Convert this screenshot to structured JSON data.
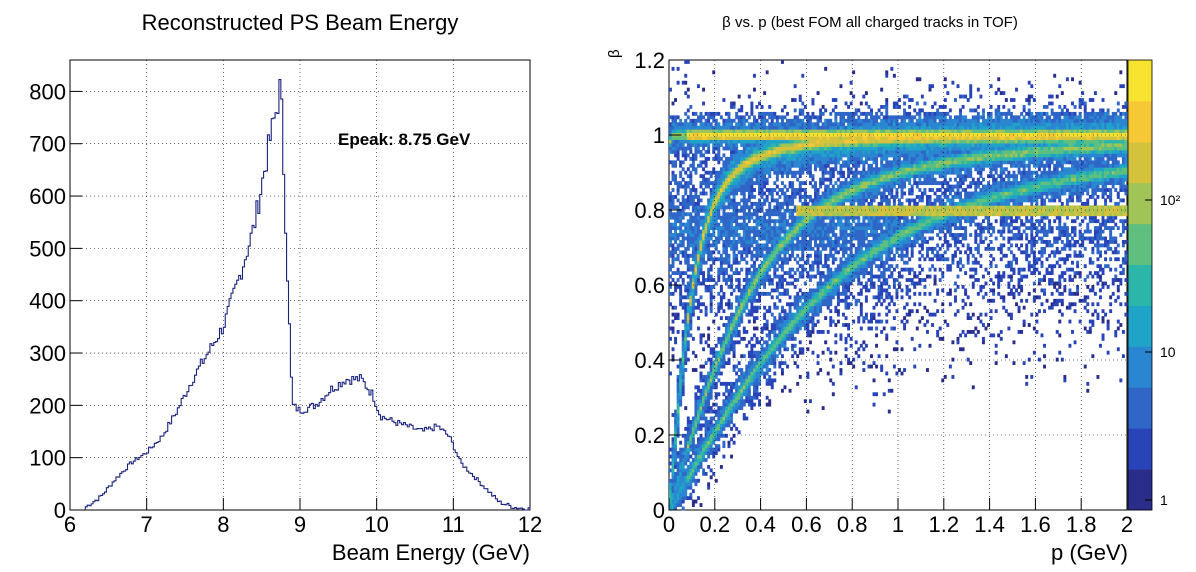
{
  "chart_data": [
    {
      "type": "histogram",
      "title": "Reconstructed PS Beam Energy",
      "xlabel": "Beam Energy (GeV)",
      "ylabel": "",
      "xlim": [
        6,
        12
      ],
      "ylim": [
        0,
        860
      ],
      "xticks": [
        "6",
        "7",
        "8",
        "9",
        "10",
        "11",
        "12"
      ],
      "yticks": [
        "0",
        "100",
        "200",
        "300",
        "400",
        "500",
        "600",
        "700",
        "800"
      ],
      "grid": true,
      "annotation": "Epeak: 8.75 GeV",
      "line_color": "#1a237e",
      "x": [
        6.2,
        6.4,
        6.6,
        6.8,
        7.0,
        7.2,
        7.4,
        7.6,
        7.8,
        8.0,
        8.2,
        8.4,
        8.5,
        8.6,
        8.7,
        8.75,
        8.8,
        8.9,
        9.0,
        9.2,
        9.4,
        9.6,
        9.8,
        9.95,
        10.05,
        10.2,
        10.4,
        10.6,
        10.8,
        10.95,
        11.1,
        11.3,
        11.5,
        11.6,
        11.8,
        12.0
      ],
      "values": [
        5,
        25,
        60,
        90,
        110,
        140,
        190,
        250,
        300,
        350,
        440,
        540,
        620,
        700,
        770,
        815,
        600,
        200,
        190,
        200,
        230,
        250,
        250,
        220,
        180,
        170,
        160,
        150,
        160,
        140,
        90,
        60,
        30,
        15,
        5,
        2
      ]
    },
    {
      "type": "heatmap",
      "title": "β vs. p (best FOM all charged tracks in TOF)",
      "xlabel": "p (GeV)",
      "ylabel": "β",
      "xlim": [
        0,
        2
      ],
      "ylim": [
        0,
        1.2
      ],
      "xticks": [
        "0",
        "0.2",
        "0.4",
        "0.6",
        "0.8",
        "1",
        "1.2",
        "1.4",
        "1.6",
        "1.8",
        "2"
      ],
      "yticks": [
        "0",
        "0.2",
        "0.4",
        "0.6",
        "0.8",
        "1",
        "1.2"
      ],
      "z_scale": "log",
      "colorbar_ticks": [
        "1",
        "10",
        "10²"
      ],
      "grid": true,
      "bands": [
        {
          "name": "",
          "mass": 0.0,
          "peak_color": "#f5e93a"
        },
        {
          "name": "",
          "mass": 0.14,
          "peak_color": "#f2c04a"
        },
        {
          "name": "",
          "mass": 0.49,
          "peak_color": "#8cc46a"
        },
        {
          "name": "",
          "mass": 0.94,
          "peak_color": "#5fb89a"
        }
      ],
      "horizontal_band_beta": 0.8
    }
  ]
}
